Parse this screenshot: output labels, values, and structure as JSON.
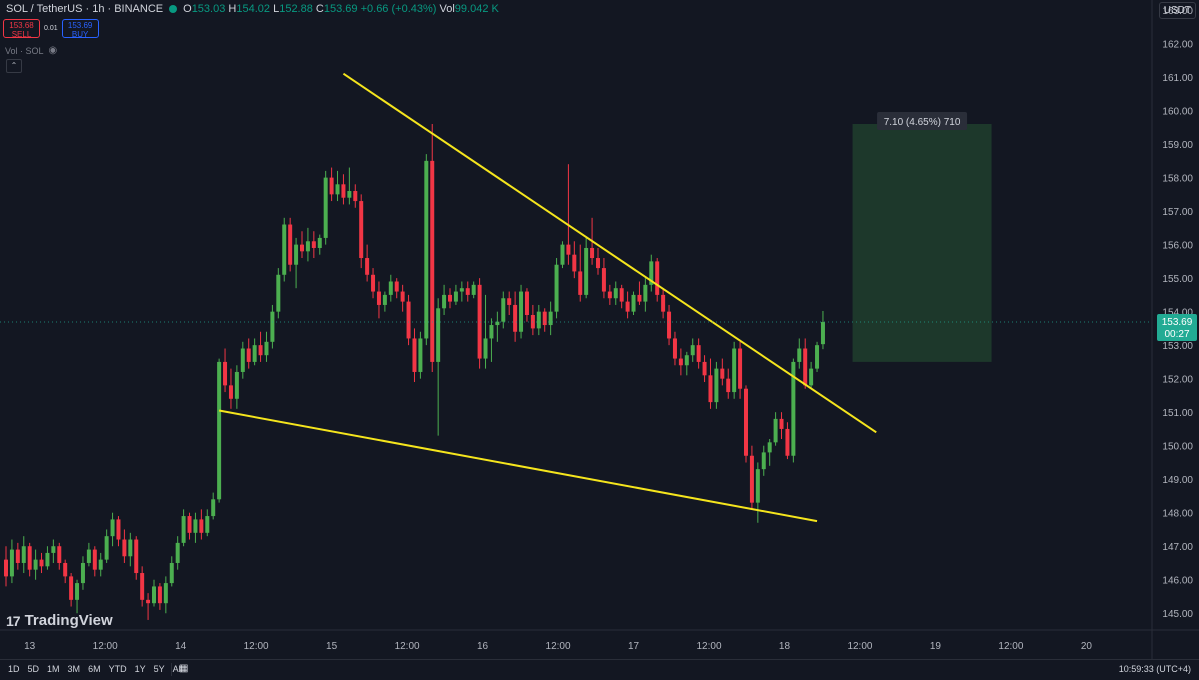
{
  "header": {
    "symbol": "SOL / TetherUS · 1h · BINANCE",
    "open": "153.03",
    "high": "154.02",
    "low": "152.88",
    "close": "153.69",
    "change": "+0.66 (+0.43%)",
    "volume": "99.042 K"
  },
  "trade": {
    "sell_price": "153.68",
    "sell_label": "SELL",
    "spread": "0.01",
    "buy_price": "153.69",
    "buy_label": "BUY"
  },
  "volume_label": "Vol · SOL",
  "currency": "USDT",
  "branding": "TradingView",
  "time_ranges": [
    "1D",
    "5D",
    "1M",
    "3M",
    "6M",
    "YTD",
    "1Y",
    "5Y",
    "All"
  ],
  "clock": "10:59:33 (UTC+4)",
  "colors": {
    "background": "#131722",
    "up": "#4caf50",
    "down": "#f23645",
    "trendline": "#f5e51d",
    "target_box": "#1e3a2c",
    "last_price": "#22ab94"
  },
  "chart_data": {
    "type": "candlestick",
    "y_axis": {
      "min": 144.5,
      "max": 163.3,
      "ticks": [
        163,
        162,
        161,
        160,
        159,
        158,
        157,
        156,
        155,
        154,
        153,
        152,
        151,
        150,
        149,
        148,
        147,
        146,
        145
      ],
      "side": "right"
    },
    "x_axis": {
      "labels": [
        "13",
        "12:00",
        "14",
        "12:00",
        "15",
        "12:00",
        "16",
        "12:00",
        "17",
        "12:00",
        "18",
        "12:00",
        "19",
        "12:00",
        "20"
      ]
    },
    "last_price": {
      "value": "153.69",
      "countdown": "00:27"
    },
    "annotation": {
      "text": "7.10 (4.65%) 710",
      "from": 152.5,
      "to": 159.6
    },
    "candles": [
      {
        "o": 146.6,
        "h": 147.0,
        "l": 145.8,
        "c": 146.1
      },
      {
        "o": 146.1,
        "h": 147.2,
        "l": 145.9,
        "c": 146.9
      },
      {
        "o": 146.9,
        "h": 147.1,
        "l": 146.3,
        "c": 146.5
      },
      {
        "o": 146.5,
        "h": 147.3,
        "l": 146.2,
        "c": 147.0
      },
      {
        "o": 147.0,
        "h": 147.1,
        "l": 146.1,
        "c": 146.3
      },
      {
        "o": 146.3,
        "h": 146.9,
        "l": 146.0,
        "c": 146.6
      },
      {
        "o": 146.6,
        "h": 146.8,
        "l": 146.2,
        "c": 146.4
      },
      {
        "o": 146.4,
        "h": 147.0,
        "l": 146.3,
        "c": 146.8
      },
      {
        "o": 146.8,
        "h": 147.2,
        "l": 146.5,
        "c": 147.0
      },
      {
        "o": 147.0,
        "h": 147.1,
        "l": 146.3,
        "c": 146.5
      },
      {
        "o": 146.5,
        "h": 146.6,
        "l": 145.9,
        "c": 146.1
      },
      {
        "o": 146.1,
        "h": 146.2,
        "l": 145.2,
        "c": 145.4
      },
      {
        "o": 145.4,
        "h": 146.0,
        "l": 145.0,
        "c": 145.9
      },
      {
        "o": 145.9,
        "h": 146.7,
        "l": 145.7,
        "c": 146.5
      },
      {
        "o": 146.5,
        "h": 147.1,
        "l": 146.4,
        "c": 146.9
      },
      {
        "o": 146.9,
        "h": 147.0,
        "l": 146.1,
        "c": 146.3
      },
      {
        "o": 146.3,
        "h": 146.8,
        "l": 146.1,
        "c": 146.6
      },
      {
        "o": 146.6,
        "h": 147.5,
        "l": 146.5,
        "c": 147.3
      },
      {
        "o": 147.3,
        "h": 148.0,
        "l": 147.0,
        "c": 147.8
      },
      {
        "o": 147.8,
        "h": 147.9,
        "l": 147.0,
        "c": 147.2
      },
      {
        "o": 147.2,
        "h": 147.5,
        "l": 146.5,
        "c": 146.7
      },
      {
        "o": 146.7,
        "h": 147.4,
        "l": 146.4,
        "c": 147.2
      },
      {
        "o": 147.2,
        "h": 147.3,
        "l": 146.0,
        "c": 146.2
      },
      {
        "o": 146.2,
        "h": 146.4,
        "l": 145.2,
        "c": 145.4
      },
      {
        "o": 145.4,
        "h": 145.6,
        "l": 144.8,
        "c": 145.3
      },
      {
        "o": 145.3,
        "h": 146.0,
        "l": 145.2,
        "c": 145.8
      },
      {
        "o": 145.8,
        "h": 145.9,
        "l": 145.1,
        "c": 145.3
      },
      {
        "o": 145.3,
        "h": 146.1,
        "l": 145.0,
        "c": 145.9
      },
      {
        "o": 145.9,
        "h": 146.7,
        "l": 145.8,
        "c": 146.5
      },
      {
        "o": 146.5,
        "h": 147.3,
        "l": 146.3,
        "c": 147.1
      },
      {
        "o": 147.1,
        "h": 148.1,
        "l": 147.0,
        "c": 147.9
      },
      {
        "o": 147.9,
        "h": 148.0,
        "l": 147.2,
        "c": 147.4
      },
      {
        "o": 147.4,
        "h": 148.0,
        "l": 147.1,
        "c": 147.8
      },
      {
        "o": 147.8,
        "h": 148.1,
        "l": 147.2,
        "c": 147.4
      },
      {
        "o": 147.4,
        "h": 148.1,
        "l": 147.3,
        "c": 147.9
      },
      {
        "o": 147.9,
        "h": 148.6,
        "l": 147.8,
        "c": 148.4
      },
      {
        "o": 148.4,
        "h": 152.6,
        "l": 148.3,
        "c": 152.5
      },
      {
        "o": 152.5,
        "h": 152.9,
        "l": 151.6,
        "c": 151.8
      },
      {
        "o": 151.8,
        "h": 152.3,
        "l": 151.1,
        "c": 151.4
      },
      {
        "o": 151.4,
        "h": 152.4,
        "l": 151.1,
        "c": 152.2
      },
      {
        "o": 152.2,
        "h": 153.1,
        "l": 152.0,
        "c": 152.9
      },
      {
        "o": 152.9,
        "h": 153.2,
        "l": 152.3,
        "c": 152.5
      },
      {
        "o": 152.5,
        "h": 153.2,
        "l": 152.4,
        "c": 153.0
      },
      {
        "o": 153.0,
        "h": 153.4,
        "l": 152.5,
        "c": 152.7
      },
      {
        "o": 152.7,
        "h": 153.4,
        "l": 152.5,
        "c": 153.1
      },
      {
        "o": 153.1,
        "h": 154.2,
        "l": 152.9,
        "c": 154.0
      },
      {
        "o": 154.0,
        "h": 155.3,
        "l": 153.8,
        "c": 155.1
      },
      {
        "o": 155.1,
        "h": 156.8,
        "l": 154.9,
        "c": 156.6
      },
      {
        "o": 156.6,
        "h": 156.8,
        "l": 155.2,
        "c": 155.4
      },
      {
        "o": 155.4,
        "h": 156.2,
        "l": 154.7,
        "c": 156.0
      },
      {
        "o": 156.0,
        "h": 156.4,
        "l": 155.6,
        "c": 155.8
      },
      {
        "o": 155.8,
        "h": 156.5,
        "l": 155.5,
        "c": 156.1
      },
      {
        "o": 156.1,
        "h": 156.4,
        "l": 155.6,
        "c": 155.9
      },
      {
        "o": 155.9,
        "h": 156.3,
        "l": 155.7,
        "c": 156.2
      },
      {
        "o": 156.2,
        "h": 158.2,
        "l": 156.0,
        "c": 158.0
      },
      {
        "o": 158.0,
        "h": 158.3,
        "l": 157.3,
        "c": 157.5
      },
      {
        "o": 157.5,
        "h": 158.2,
        "l": 157.3,
        "c": 157.8
      },
      {
        "o": 157.8,
        "h": 158.1,
        "l": 157.2,
        "c": 157.4
      },
      {
        "o": 157.4,
        "h": 158.3,
        "l": 157.2,
        "c": 157.6
      },
      {
        "o": 157.6,
        "h": 157.8,
        "l": 157.1,
        "c": 157.3
      },
      {
        "o": 157.3,
        "h": 157.5,
        "l": 155.3,
        "c": 155.6
      },
      {
        "o": 155.6,
        "h": 156.0,
        "l": 154.9,
        "c": 155.1
      },
      {
        "o": 155.1,
        "h": 155.3,
        "l": 154.4,
        "c": 154.6
      },
      {
        "o": 154.6,
        "h": 154.9,
        "l": 153.8,
        "c": 154.2
      },
      {
        "o": 154.2,
        "h": 154.6,
        "l": 154.0,
        "c": 154.5
      },
      {
        "o": 154.5,
        "h": 155.1,
        "l": 154.3,
        "c": 154.9
      },
      {
        "o": 154.9,
        "h": 155.0,
        "l": 154.4,
        "c": 154.6
      },
      {
        "o": 154.6,
        "h": 154.8,
        "l": 154.0,
        "c": 154.3
      },
      {
        "o": 154.3,
        "h": 154.5,
        "l": 153.0,
        "c": 153.2
      },
      {
        "o": 153.2,
        "h": 153.5,
        "l": 151.9,
        "c": 152.2
      },
      {
        "o": 152.2,
        "h": 153.4,
        "l": 152.0,
        "c": 153.2
      },
      {
        "o": 153.2,
        "h": 158.7,
        "l": 153.0,
        "c": 158.5
      },
      {
        "o": 158.5,
        "h": 159.6,
        "l": 152.2,
        "c": 152.5
      },
      {
        "o": 152.5,
        "h": 154.4,
        "l": 150.3,
        "c": 154.1
      },
      {
        "o": 154.1,
        "h": 154.8,
        "l": 153.9,
        "c": 154.5
      },
      {
        "o": 154.5,
        "h": 154.7,
        "l": 154.1,
        "c": 154.3
      },
      {
        "o": 154.3,
        "h": 154.8,
        "l": 154.2,
        "c": 154.6
      },
      {
        "o": 154.6,
        "h": 154.9,
        "l": 154.3,
        "c": 154.7
      },
      {
        "o": 154.7,
        "h": 154.9,
        "l": 154.3,
        "c": 154.5
      },
      {
        "o": 154.5,
        "h": 154.9,
        "l": 154.4,
        "c": 154.8
      },
      {
        "o": 154.8,
        "h": 155.0,
        "l": 152.3,
        "c": 152.6
      },
      {
        "o": 152.6,
        "h": 154.5,
        "l": 152.3,
        "c": 153.2
      },
      {
        "o": 153.2,
        "h": 153.8,
        "l": 152.5,
        "c": 153.6
      },
      {
        "o": 153.6,
        "h": 154.0,
        "l": 153.1,
        "c": 153.7
      },
      {
        "o": 153.7,
        "h": 154.6,
        "l": 153.5,
        "c": 154.4
      },
      {
        "o": 154.4,
        "h": 154.6,
        "l": 153.9,
        "c": 154.2
      },
      {
        "o": 154.2,
        "h": 154.6,
        "l": 153.1,
        "c": 153.4
      },
      {
        "o": 153.4,
        "h": 154.8,
        "l": 153.2,
        "c": 154.6
      },
      {
        "o": 154.6,
        "h": 154.7,
        "l": 153.7,
        "c": 153.9
      },
      {
        "o": 153.9,
        "h": 154.2,
        "l": 153.3,
        "c": 153.5
      },
      {
        "o": 153.5,
        "h": 154.2,
        "l": 153.3,
        "c": 154.0
      },
      {
        "o": 154.0,
        "h": 154.1,
        "l": 153.4,
        "c": 153.6
      },
      {
        "o": 153.6,
        "h": 154.3,
        "l": 153.3,
        "c": 154.0
      },
      {
        "o": 154.0,
        "h": 155.6,
        "l": 153.8,
        "c": 155.4
      },
      {
        "o": 155.4,
        "h": 156.1,
        "l": 155.3,
        "c": 156.0
      },
      {
        "o": 156.0,
        "h": 158.4,
        "l": 155.4,
        "c": 155.7
      },
      {
        "o": 155.7,
        "h": 156.1,
        "l": 155.0,
        "c": 155.2
      },
      {
        "o": 155.2,
        "h": 156.0,
        "l": 154.3,
        "c": 154.5
      },
      {
        "o": 154.5,
        "h": 156.2,
        "l": 154.4,
        "c": 155.9
      },
      {
        "o": 155.9,
        "h": 156.8,
        "l": 155.4,
        "c": 155.6
      },
      {
        "o": 155.6,
        "h": 155.9,
        "l": 155.1,
        "c": 155.3
      },
      {
        "o": 155.3,
        "h": 155.6,
        "l": 154.4,
        "c": 154.6
      },
      {
        "o": 154.6,
        "h": 154.8,
        "l": 154.2,
        "c": 154.4
      },
      {
        "o": 154.4,
        "h": 154.9,
        "l": 154.2,
        "c": 154.7
      },
      {
        "o": 154.7,
        "h": 154.8,
        "l": 154.1,
        "c": 154.3
      },
      {
        "o": 154.3,
        "h": 154.6,
        "l": 153.8,
        "c": 154.0
      },
      {
        "o": 154.0,
        "h": 154.6,
        "l": 153.9,
        "c": 154.5
      },
      {
        "o": 154.5,
        "h": 154.9,
        "l": 154.2,
        "c": 154.3
      },
      {
        "o": 154.3,
        "h": 155.0,
        "l": 154.0,
        "c": 154.8
      },
      {
        "o": 154.8,
        "h": 155.7,
        "l": 154.6,
        "c": 155.5
      },
      {
        "o": 155.5,
        "h": 155.6,
        "l": 154.3,
        "c": 154.5
      },
      {
        "o": 154.5,
        "h": 154.7,
        "l": 153.8,
        "c": 154.0
      },
      {
        "o": 154.0,
        "h": 154.2,
        "l": 153.0,
        "c": 153.2
      },
      {
        "o": 153.2,
        "h": 153.4,
        "l": 152.4,
        "c": 152.6
      },
      {
        "o": 152.6,
        "h": 152.9,
        "l": 152.1,
        "c": 152.4
      },
      {
        "o": 152.4,
        "h": 152.8,
        "l": 152.1,
        "c": 152.7
      },
      {
        "o": 152.7,
        "h": 153.2,
        "l": 152.5,
        "c": 153.0
      },
      {
        "o": 153.0,
        "h": 153.2,
        "l": 152.3,
        "c": 152.5
      },
      {
        "o": 152.5,
        "h": 152.7,
        "l": 151.9,
        "c": 152.1
      },
      {
        "o": 152.1,
        "h": 152.6,
        "l": 151.1,
        "c": 151.3
      },
      {
        "o": 151.3,
        "h": 152.5,
        "l": 151.1,
        "c": 152.3
      },
      {
        "o": 152.3,
        "h": 152.6,
        "l": 151.8,
        "c": 152.0
      },
      {
        "o": 152.0,
        "h": 152.3,
        "l": 151.4,
        "c": 151.6
      },
      {
        "o": 151.6,
        "h": 153.1,
        "l": 151.4,
        "c": 152.9
      },
      {
        "o": 152.9,
        "h": 153.1,
        "l": 151.4,
        "c": 151.7
      },
      {
        "o": 151.7,
        "h": 151.8,
        "l": 149.5,
        "c": 149.7
      },
      {
        "o": 149.7,
        "h": 150.0,
        "l": 148.1,
        "c": 148.3
      },
      {
        "o": 148.3,
        "h": 149.5,
        "l": 147.7,
        "c": 149.3
      },
      {
        "o": 149.3,
        "h": 150.0,
        "l": 149.1,
        "c": 149.8
      },
      {
        "o": 149.8,
        "h": 150.2,
        "l": 149.4,
        "c": 150.1
      },
      {
        "o": 150.1,
        "h": 151.0,
        "l": 150.0,
        "c": 150.8
      },
      {
        "o": 150.8,
        "h": 151.0,
        "l": 150.2,
        "c": 150.5
      },
      {
        "o": 150.5,
        "h": 150.7,
        "l": 149.6,
        "c": 149.7
      },
      {
        "o": 149.7,
        "h": 152.6,
        "l": 149.5,
        "c": 152.5
      },
      {
        "o": 152.5,
        "h": 153.2,
        "l": 152.3,
        "c": 152.9
      },
      {
        "o": 152.9,
        "h": 153.2,
        "l": 151.7,
        "c": 151.8
      },
      {
        "o": 151.8,
        "h": 152.5,
        "l": 151.7,
        "c": 152.3
      },
      {
        "o": 152.3,
        "h": 153.1,
        "l": 152.2,
        "c": 153.0
      },
      {
        "o": 153.03,
        "h": 154.02,
        "l": 152.88,
        "c": 153.69
      }
    ],
    "trendlines": [
      {
        "from": {
          "bar": 57,
          "price": 161.1
        },
        "to": {
          "bar": 147,
          "price": 150.4
        }
      },
      {
        "from": {
          "bar": 36,
          "price": 151.05
        },
        "to": {
          "bar": 137,
          "price": 147.75
        }
      }
    ]
  }
}
